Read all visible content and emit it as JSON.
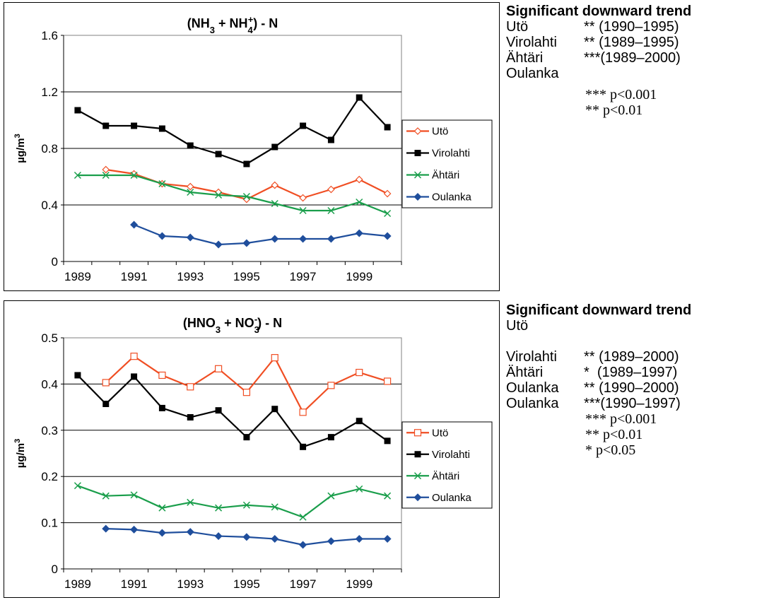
{
  "chart_data": [
    {
      "type": "line",
      "title": "(NH3 + NH4+) - N",
      "title_parts": {
        "a": "(NH",
        "a_sub": "3",
        "b": " + NH",
        "b_sub": "4",
        "b_sup": "+",
        "c": ") - N"
      },
      "ylabel_parts": {
        "base": "µg/m",
        "sup": "3"
      },
      "ylim": [
        0,
        1.6
      ],
      "yticks": [
        "0",
        "0.4",
        "0.8",
        "1.2",
        "1.6"
      ],
      "ytick_values": [
        0,
        0.4,
        0.8,
        1.2,
        1.6
      ],
      "x": [
        1989,
        1990,
        1991,
        1992,
        1993,
        1994,
        1995,
        1996,
        1997,
        1998,
        1999,
        2000
      ],
      "xtick_labels": [
        "1989",
        "1991",
        "1993",
        "1995",
        "1997",
        "1999"
      ],
      "xtick_values": [
        1989,
        1991,
        1993,
        1995,
        1997,
        1999
      ],
      "grid": true,
      "legend_position": "right",
      "series": [
        {
          "name": "Utö",
          "color": "#f04e23",
          "marker": "diamond-open",
          "values": [
            null,
            0.65,
            0.62,
            0.55,
            0.53,
            0.49,
            0.44,
            0.54,
            0.45,
            0.51,
            0.58,
            0.48
          ]
        },
        {
          "name": "Virolahti",
          "color": "#000000",
          "marker": "square",
          "values": [
            1.07,
            0.96,
            0.96,
            0.94,
            0.82,
            0.76,
            0.69,
            0.81,
            0.96,
            0.86,
            1.16,
            0.95
          ]
        },
        {
          "name": "Ähtäri",
          "color": "#1a9e4b",
          "marker": "x",
          "values": [
            0.61,
            0.61,
            0.61,
            0.55,
            0.49,
            0.47,
            0.46,
            0.41,
            0.36,
            0.36,
            0.42,
            0.34
          ]
        },
        {
          "name": "Oulanka",
          "color": "#1f4e9c",
          "marker": "diamond",
          "values": [
            null,
            null,
            0.26,
            0.18,
            0.17,
            0.12,
            0.13,
            0.16,
            0.16,
            0.16,
            0.2,
            0.18
          ]
        }
      ]
    },
    {
      "type": "line",
      "title": "(HNO3 + NO3-) - N",
      "title_parts": {
        "a": "(HNO",
        "a_sub": "3",
        "b": " + NO",
        "b_sub": "3",
        "b_sup": "-",
        "c": ") - N"
      },
      "ylabel_parts": {
        "base": "µg/m",
        "sup": "3"
      },
      "ylim": [
        0,
        0.5
      ],
      "yticks": [
        "0",
        "0.1",
        "0.2",
        "0.3",
        "0.4",
        "0.5"
      ],
      "ytick_values": [
        0,
        0.1,
        0.2,
        0.3,
        0.4,
        0.5
      ],
      "x": [
        1989,
        1990,
        1991,
        1992,
        1993,
        1994,
        1995,
        1996,
        1997,
        1998,
        1999,
        2000
      ],
      "xtick_labels": [
        "1989",
        "1991",
        "1993",
        "1995",
        "1997",
        "1999"
      ],
      "xtick_values": [
        1989,
        1991,
        1993,
        1995,
        1997,
        1999
      ],
      "grid": true,
      "legend_position": "right",
      "series": [
        {
          "name": "Utö",
          "color": "#f04e23",
          "marker": "square-open",
          "values": [
            null,
            0.403,
            0.46,
            0.419,
            0.394,
            0.433,
            0.382,
            0.457,
            0.339,
            0.397,
            0.425,
            0.406
          ]
        },
        {
          "name": "Virolahti",
          "color": "#000000",
          "marker": "square",
          "values": [
            0.419,
            0.357,
            0.416,
            0.348,
            0.328,
            0.343,
            0.285,
            0.346,
            0.264,
            0.285,
            0.32,
            0.277
          ]
        },
        {
          "name": "Ähtäri",
          "color": "#1a9e4b",
          "marker": "x",
          "values": [
            0.18,
            0.158,
            0.16,
            0.132,
            0.144,
            0.132,
            0.138,
            0.134,
            0.112,
            0.158,
            0.173,
            0.158
          ]
        },
        {
          "name": "Oulanka",
          "color": "#1f4e9c",
          "marker": "diamond",
          "values": [
            null,
            0.087,
            0.085,
            0.078,
            0.08,
            0.071,
            0.069,
            0.065,
            0.052,
            0.06,
            0.065,
            0.065
          ]
        }
      ]
    }
  ],
  "panels": [
    {
      "title": "Significant downward trend",
      "rows": [
        {
          "site": "Utö",
          "value": "** (1990–1995)"
        },
        {
          "site": "Virolahti",
          "value": "** (1989–1995)"
        },
        {
          "site": "Ähtäri",
          "value": "***(1989–2000)"
        },
        {
          "site": "Oulanka",
          "value": ""
        }
      ],
      "sig_notes": [
        "*** p<0.001",
        "** p<0.01"
      ]
    },
    {
      "title": "Significant downward trend",
      "rows": [
        {
          "site": "Utö",
          "value": ""
        },
        {
          "site": "Virolahti",
          "value": "** (1989–2000)"
        },
        {
          "site": "Ähtäri",
          "value": "*  (1989–1997)"
        },
        {
          "site": "Oulanka",
          "value": "** (1990–2000)"
        },
        {
          "site": "Oulanka",
          "value": "***(1990–1997)"
        }
      ],
      "sig_notes": [
        "*** p<0.001",
        "** p<0.01",
        "* p<0.05"
      ]
    }
  ]
}
